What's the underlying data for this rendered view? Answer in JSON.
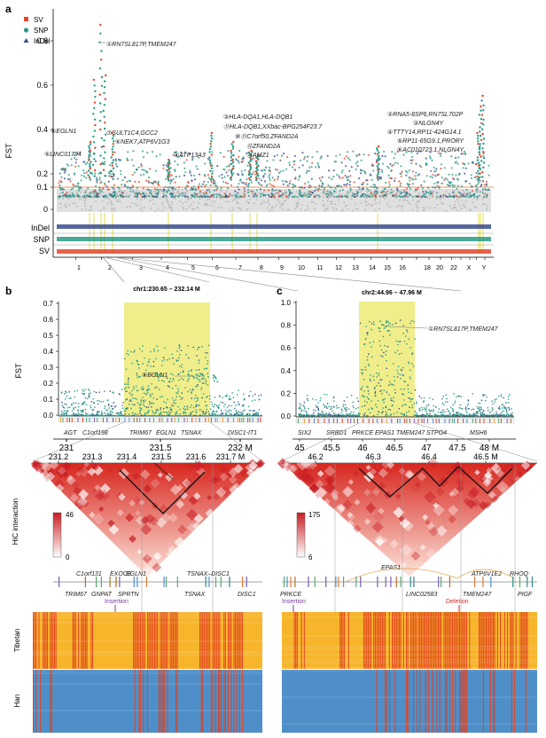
{
  "panels": {
    "a": "a",
    "b": "b",
    "c": "c"
  },
  "legend": {
    "sv": "SV",
    "snp": "SNP",
    "indel": "InDel"
  },
  "colors": {
    "sv": "#e0472b",
    "snp": "#2a9a86",
    "indel": "#3a4c8c",
    "highlight": "#f0ee8a",
    "tibetan": "#f7b52c",
    "han": "#4f8fc9",
    "variant": "#e0401e",
    "thresh": "#e07030"
  },
  "panel_a": {
    "ylabel": "FST",
    "yticks": [
      "0.8",
      "0.6",
      "0.4",
      "0.2",
      "0.1",
      "0"
    ],
    "tracks": [
      "InDel",
      "SNP",
      "SV"
    ],
    "chromosomes": [
      "1",
      "2",
      "3",
      "4",
      "5",
      "6",
      "7",
      "8",
      "9",
      "10",
      "11",
      "12",
      "13",
      "14",
      "15",
      "16",
      "17",
      "18",
      "19",
      "20",
      "21",
      "22",
      "X",
      "Y"
    ],
    "chrom_labels_shown": [
      "1",
      "2",
      "3",
      "4",
      "5",
      "6",
      "7",
      "8",
      "9",
      "10",
      "11",
      "12",
      "13",
      "14",
      "15",
      "16",
      "18",
      "20",
      "22",
      "X",
      "Y"
    ],
    "annotations": [
      "①RN7SL817P,TMEM247",
      "⑧EGLN1",
      "⑦SULT1C4,GCC2",
      "⑥NEK7,ATP6V1G3",
      "⑤LINC01794",
      "④ATP13A3",
      "③HLA-DQA1,HLA-DQB1",
      "⑪HLA-DQB1,XXbac-BPG254F23.7",
      "⑩⑪C7orf50,ZFAND2A",
      "⑫ZFAND2A",
      "⑬AMZ1",
      "②RNA5-8SP6,RN7SL702P",
      "③NLGN4Y",
      "④TTTY14,RP11-424G14.1",
      "⑤RP11-65G9.1,PRORY",
      "⑥AC010723.1,NLGN4Y"
    ]
  },
  "panel_b": {
    "region": "chr1:230.65 – 232.14 M",
    "ylabel": "FST",
    "yticks": [
      "0.7",
      "0.6",
      "0.5",
      "0.4",
      "0.3",
      "0.2",
      "0.1",
      "0.0"
    ],
    "peak_label": "⑧EGLN1",
    "genes_axis": [
      "AGT",
      "C1orf198",
      "TRIM67",
      "EGLN1",
      "TSNAX",
      "DISC1-IT1"
    ],
    "axis_ticks": [
      "231",
      "231.5",
      "232 M"
    ],
    "zoom_ticks": [
      "231.2",
      "231.3",
      "231.4",
      "231.5",
      "231.6",
      "231.7 M"
    ],
    "hic_label": "HiC interaction",
    "scale_max": "46",
    "scale_min": "0",
    "genes_top": [
      "C1orf131",
      "EXOC8",
      "EGLN1",
      "TSNAX–DISC1"
    ],
    "genes_bottom": [
      "TRIM67",
      "GNPAT",
      "SPRTN",
      "TSNAX",
      "DISC1"
    ],
    "event": "Insertion",
    "pop1": "Tibetan",
    "pop2": "Han"
  },
  "panel_c": {
    "region": "chr2:44.96 – 47.96 M",
    "yticks": [
      "1.0",
      "0.8",
      "0.6",
      "0.4",
      "0.2",
      "0.0"
    ],
    "peak_label": "①RN7SL817P,TMEM247",
    "genes_axis": [
      "SIX2",
      "SRBD1",
      "PRKCE",
      "EPAS1",
      "TMEM247",
      "STPG4",
      "MSH6"
    ],
    "axis_ticks": [
      "45",
      "45.5",
      "46",
      "46.5",
      "47",
      "47.5",
      "48 M"
    ],
    "zoom_ticks": [
      "46.2",
      "46.3",
      "46.4",
      "46.5 M"
    ],
    "scale_max": "175",
    "scale_min": "6",
    "genes_top": [
      "EPAS1",
      "ATP6V1E2",
      "RHOQ"
    ],
    "genes_bottom": [
      "PRKCE",
      "LINC02583",
      "TMEM247",
      "PIGF"
    ],
    "event_left": "Insertion",
    "event_right": "Deletion"
  }
}
